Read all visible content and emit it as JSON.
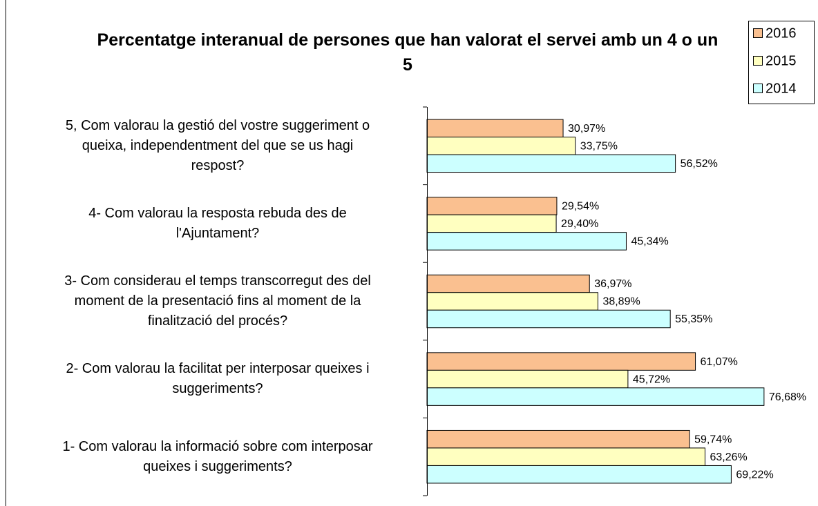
{
  "chart_data": {
    "type": "barh",
    "title": "Percentatge interanual de persones que han valorat el servei amb un 4 o un 5",
    "categories": [
      "5, Com valorau la gestió del vostre suggeriment o\nqueixa, independentment del que se us hagi\nrespost?",
      "4- Com valorau la resposta rebuda des de\nl'Ajuntament?",
      "3- Com considerau el temps transcorregut des del\nmoment de la presentació fins al moment de la\nfinalització del procés?",
      "2- Com valorau la facilitat per interposar queixes i\nsuggeriments?",
      "1- Com valorau la informació sobre com interposar\nqueixes i suggeriments?"
    ],
    "series": [
      {
        "name": "2016",
        "color": "#fac090",
        "values": [
          30.97,
          29.54,
          36.97,
          61.07,
          59.74
        ],
        "value_labels": [
          "30,97%",
          "29,54%",
          "36,97%",
          "61,07%",
          "59,74%"
        ]
      },
      {
        "name": "2015",
        "color": "#ffffc0",
        "values": [
          33.75,
          29.4,
          38.89,
          45.72,
          63.26
        ],
        "value_labels": [
          "33,75%",
          "29,40%",
          "38,89%",
          "45,72%",
          "63,26%"
        ]
      },
      {
        "name": "2014",
        "color": "#ccffff",
        "values": [
          56.52,
          45.34,
          55.35,
          76.68,
          69.22
        ],
        "value_labels": [
          "56,52%",
          "45,34%",
          "55,35%",
          "76,68%",
          "69,22%"
        ]
      }
    ],
    "xlim": [
      0,
      80
    ],
    "legend": "top-right"
  }
}
